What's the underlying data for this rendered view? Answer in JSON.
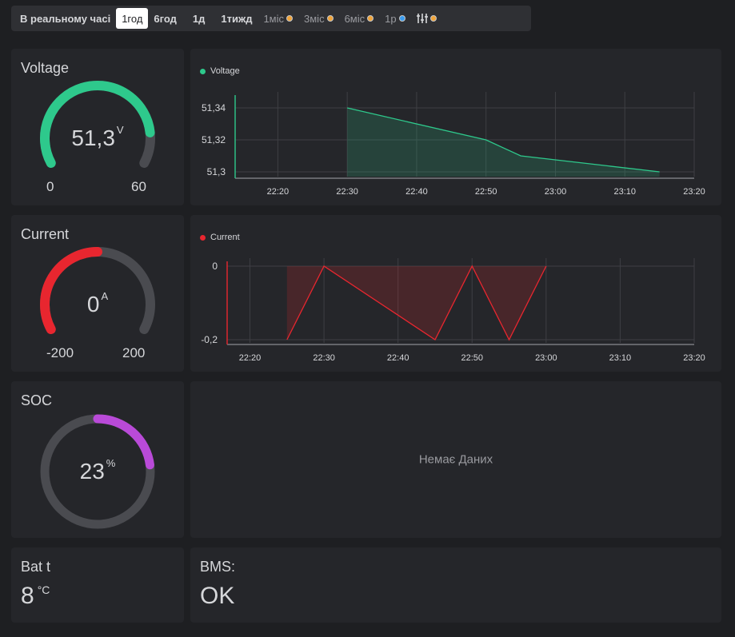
{
  "toolbar": {
    "items": [
      {
        "label": "В реальному часі"
      },
      {
        "label": "1год"
      },
      {
        "label": "6год"
      },
      {
        "label": "1д"
      },
      {
        "label": "1тижд"
      },
      {
        "label": "1міс"
      },
      {
        "label": "3міс"
      },
      {
        "label": "6міс"
      },
      {
        "label": "1р"
      }
    ],
    "active_index": 1,
    "settings_icon": "sliders-icon"
  },
  "voltage": {
    "title": "Voltage",
    "value": "51,3",
    "unit": "V",
    "min": "0",
    "max": "60",
    "fraction": 0.855,
    "color": "#2ec98c"
  },
  "current": {
    "title": "Current",
    "value": "0",
    "unit": "A",
    "min": "-200",
    "max": "200",
    "fraction": 0.5,
    "color": "#e8262f"
  },
  "soc": {
    "title": "SOC",
    "value": "23",
    "unit": "%",
    "fraction": 0.23,
    "color": "#b94ad8"
  },
  "bat_t": {
    "title": "Bat t",
    "value": "8",
    "unit": "°C"
  },
  "bms": {
    "title": "BMS:",
    "value": "OK"
  },
  "no_data": "Немає Даних",
  "chart_data": [
    {
      "type": "area",
      "series": [
        {
          "name": "Voltage",
          "x": [
            "22:30",
            "22:50",
            "22:55",
            "23:15"
          ],
          "y": [
            51.34,
            51.32,
            51.31,
            51.3
          ]
        }
      ],
      "x_ticks": [
        "22:20",
        "22:30",
        "22:40",
        "22:50",
        "23:00",
        "23:10",
        "23:20"
      ],
      "y_ticks": [
        "51,34",
        "51,32",
        "51,3"
      ],
      "ylim": [
        51.299,
        51.345
      ],
      "xlim": [
        "22:15",
        "23:20"
      ],
      "color": "#2ec98c",
      "grid": true,
      "legend": "top-left"
    },
    {
      "type": "area",
      "series": [
        {
          "name": "Current",
          "x": [
            "22:25",
            "22:30",
            "22:45",
            "22:50",
            "22:55",
            "23:00"
          ],
          "y": [
            -0.2,
            0,
            -0.2,
            0,
            -0.2,
            0
          ]
        }
      ],
      "x_ticks": [
        "22:20",
        "22:30",
        "22:40",
        "22:50",
        "23:00",
        "23:10",
        "23:20"
      ],
      "y_ticks": [
        "0",
        "-0,2"
      ],
      "ylim": [
        -0.2,
        0
      ],
      "xlim": [
        "22:18",
        "23:20"
      ],
      "color": "#e8262f",
      "grid": true,
      "legend": "top-left"
    }
  ]
}
